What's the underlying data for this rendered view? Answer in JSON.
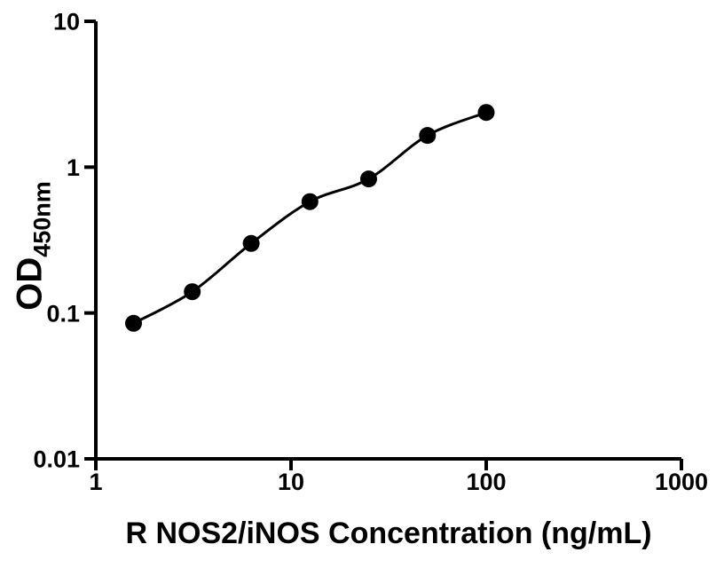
{
  "page": {
    "background": "#ffffff",
    "foreground": "#000000"
  },
  "chart_data": {
    "type": "scatter",
    "title": "",
    "xlabel": "R NOS2/iNOS Concentration (ng/mL)",
    "ylabel": {
      "main": "OD",
      "subscript": "450nm"
    },
    "xscale": "log",
    "yscale": "log",
    "xlim": [
      1,
      1000
    ],
    "ylim": [
      0.01,
      10
    ],
    "x_tick_values": [
      1,
      10,
      100,
      1000
    ],
    "x_tick_labels": [
      "1",
      "10",
      "100",
      "1000"
    ],
    "y_tick_values": [
      0.01,
      0.1,
      1,
      10
    ],
    "y_tick_labels": [
      "0.01",
      "0.1",
      "1",
      "10"
    ],
    "grid": false,
    "legend": "none",
    "series": [
      {
        "name": "standard-curve",
        "marker": "filled-circle",
        "marker_color": "#000000",
        "line_color": "#000000",
        "fit": "smooth curve through standards",
        "x": [
          1.56,
          3.12,
          6.25,
          12.5,
          25,
          50,
          100
        ],
        "y": [
          0.085,
          0.14,
          0.3,
          0.58,
          0.83,
          1.65,
          2.37
        ]
      }
    ]
  }
}
